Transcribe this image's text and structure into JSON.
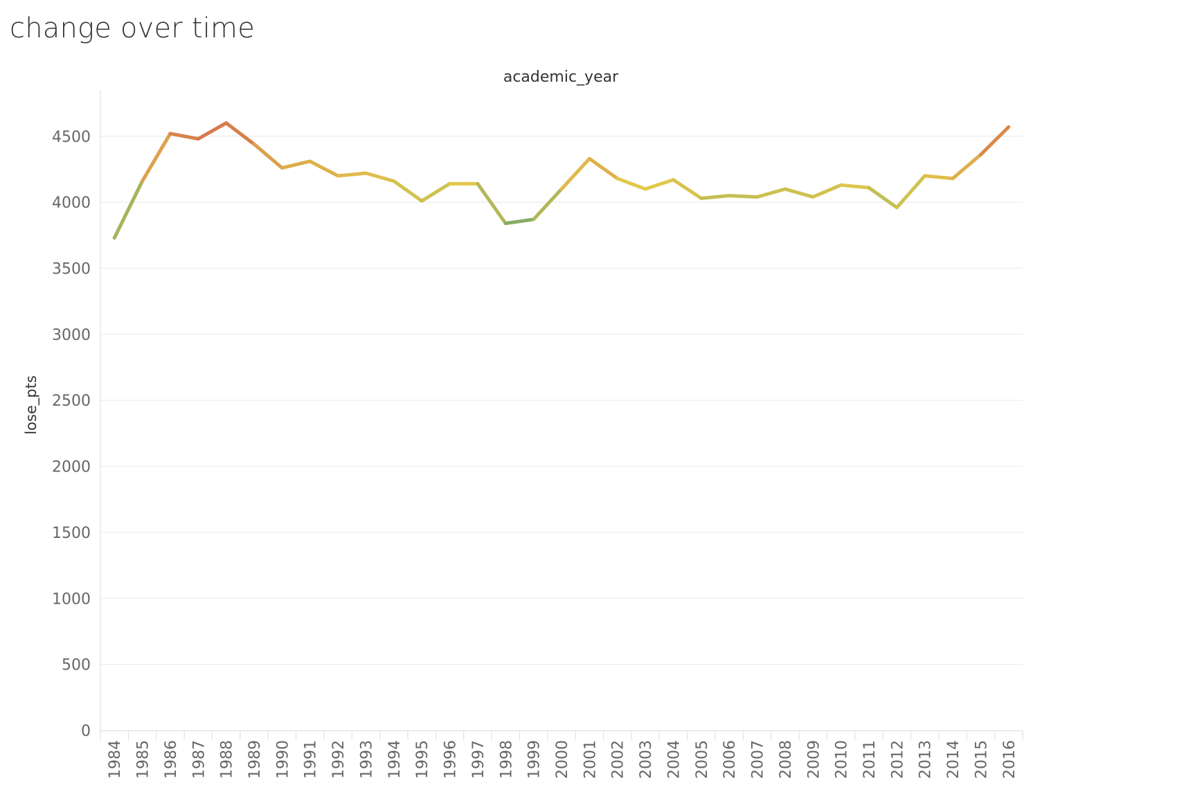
{
  "header": {
    "title": "change over time"
  },
  "chart_data": {
    "type": "line",
    "title": "change over time",
    "xlabel": "academic_year",
    "ylabel": "lose_pts",
    "x": [
      1984,
      1985,
      1986,
      1987,
      1988,
      1989,
      1990,
      1991,
      1992,
      1993,
      1994,
      1995,
      1996,
      1997,
      1998,
      1999,
      2000,
      2001,
      2002,
      2003,
      2004,
      2005,
      2006,
      2007,
      2008,
      2009,
      2010,
      2011,
      2012,
      2013,
      2014,
      2015,
      2016
    ],
    "series": [
      {
        "name": "",
        "values": [
          3730,
          4160,
          4520,
          4480,
          4600,
          4440,
          4260,
          4310,
          4200,
          4220,
          4160,
          4010,
          4140,
          4140,
          3840,
          3870,
          4100,
          4330,
          4180,
          4100,
          4170,
          4030,
          4050,
          4040,
          4100,
          4040,
          4130,
          4110,
          3960,
          4200,
          4180,
          4360,
          4570
        ]
      }
    ],
    "ylim": [
      0,
      4850
    ],
    "yticks": [
      0,
      500,
      1000,
      1500,
      2000,
      2500,
      3000,
      3500,
      4000,
      4500
    ],
    "grid": true,
    "legend": "none",
    "color_scale": {
      "low": "#5e9e6e",
      "mid": "#e2c84c",
      "high": "#d4704a"
    }
  }
}
